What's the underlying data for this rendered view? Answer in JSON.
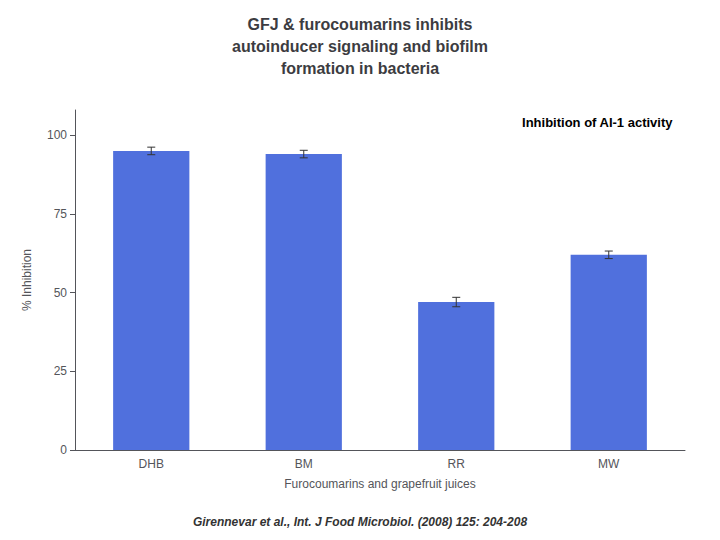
{
  "chart_data": {
    "type": "bar",
    "title": "GFJ & furocoumarins inhibits\nautoinducer signaling and biofilm\nformation in bacteria",
    "categories": [
      "DHB",
      "BM",
      "RR",
      "MW"
    ],
    "values": [
      95.0,
      94.0,
      47.0,
      62.0
    ],
    "errors": [
      1.2,
      1.2,
      1.5,
      1.2
    ],
    "xlabel": "Furocoumarins and grapefruit juices",
    "ylabel": "% Inhibition",
    "ylim": [
      0,
      108
    ],
    "yticks": [
      0,
      25,
      50,
      75,
      100
    ],
    "grid": false,
    "annotations": [
      "Inhibition of AI-1 activity",
      "Girennevar et al., Int. J Food Microbiol. (2008) 125: 204-208"
    ]
  }
}
